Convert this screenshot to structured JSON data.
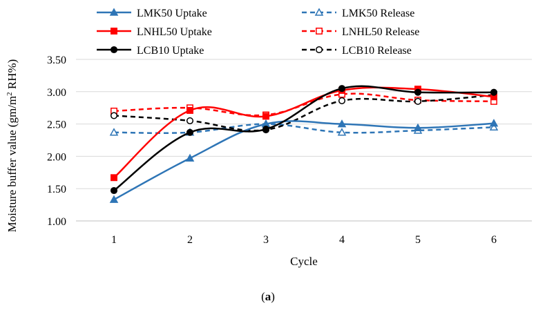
{
  "chart_data": {
    "type": "line",
    "title": "",
    "xlabel": "Cycle",
    "ylabel": "Moisture buffer value (gm/m² RH%)",
    "ylabel_main": "Moisture buffer value (gm/m",
    "ylabel_sup": "2",
    "ylabel_tail": " RH%)",
    "x": [
      1,
      2,
      3,
      4,
      5,
      6
    ],
    "x_ticks": [
      "1",
      "2",
      "3",
      "4",
      "5",
      "6"
    ],
    "ylim": [
      1.0,
      3.5
    ],
    "y_ticks": [
      "1.00",
      "1.50",
      "2.00",
      "2.50",
      "3.00",
      "3.50"
    ],
    "grid": true,
    "legend_position": "top",
    "series": [
      {
        "name": "LMK50 Uptake",
        "color": "#2E75B6",
        "dash": false,
        "marker": "triangle",
        "filled": true,
        "values": [
          1.33,
          1.97,
          2.5,
          2.5,
          2.44,
          2.51
        ]
      },
      {
        "name": "LMK50 Release",
        "color": "#2E75B6",
        "dash": true,
        "marker": "triangle",
        "filled": false,
        "values": [
          2.37,
          2.37,
          2.5,
          2.37,
          2.4,
          2.45
        ]
      },
      {
        "name": "LNHL50 Uptake",
        "color": "#FF0000",
        "dash": false,
        "marker": "square",
        "filled": true,
        "values": [
          1.67,
          2.71,
          2.62,
          3.02,
          3.04,
          2.92
        ]
      },
      {
        "name": "LNHL50 Release",
        "color": "#FF0000",
        "dash": true,
        "marker": "square",
        "filled": false,
        "values": [
          2.7,
          2.75,
          2.64,
          2.96,
          2.87,
          2.85
        ]
      },
      {
        "name": "LCB10 Uptake",
        "color": "#000000",
        "dash": false,
        "marker": "circle",
        "filled": true,
        "values": [
          1.47,
          2.37,
          2.42,
          3.05,
          2.99,
          2.99
        ]
      },
      {
        "name": "LCB10 Release",
        "color": "#000000",
        "dash": true,
        "marker": "circle",
        "filled": false,
        "values": [
          2.63,
          2.55,
          2.41,
          2.86,
          2.85,
          2.95
        ]
      }
    ]
  },
  "caption": {
    "open": "(",
    "label": "a",
    "close": ")"
  }
}
